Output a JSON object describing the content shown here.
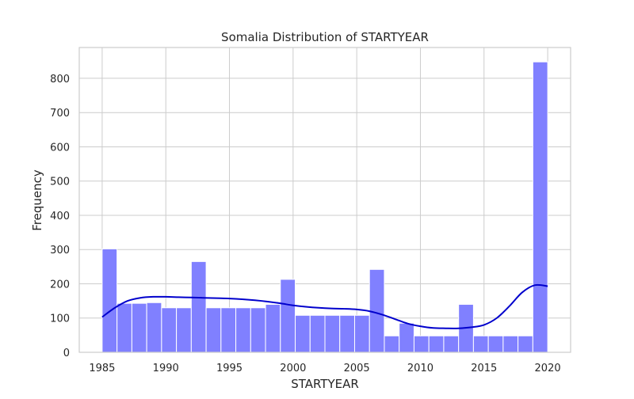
{
  "chart_data": {
    "type": "bar",
    "title": "Somalia Distribution of STARTYEAR",
    "xlabel": "STARTYEAR",
    "ylabel": "Frequency",
    "xlim": [
      1983.2,
      2021.8
    ],
    "ylim": [
      0,
      890
    ],
    "xticks": [
      1985,
      1990,
      1995,
      2000,
      2005,
      2010,
      2015,
      2020
    ],
    "yticks": [
      0,
      100,
      200,
      300,
      400,
      500,
      600,
      700,
      800
    ],
    "grid": true,
    "bin_start": 1985,
    "bin_width": 1.1667,
    "values": [
      302,
      143,
      143,
      145,
      130,
      130,
      265,
      130,
      130,
      130,
      130,
      140,
      213,
      108,
      108,
      108,
      108,
      108,
      242,
      48,
      85,
      48,
      48,
      48,
      140,
      48,
      48,
      48,
      48,
      848
    ],
    "bar_color": "#8080ff",
    "kde": {
      "color": "#0000cc",
      "x": [
        1985,
        1986,
        1987,
        1988,
        1989,
        1990,
        1991,
        1992,
        1993,
        1994,
        1995,
        1996,
        1997,
        1998,
        1999,
        2000,
        2001,
        2002,
        2003,
        2004,
        2005,
        2006,
        2007,
        2008,
        2009,
        2010,
        2011,
        2012,
        2013,
        2014,
        2015,
        2016,
        2017,
        2018,
        2019,
        2020
      ],
      "y": [
        103,
        130,
        150,
        159,
        162,
        162,
        161,
        160,
        159,
        158,
        157,
        155,
        152,
        148,
        143,
        137,
        133,
        130,
        128,
        127,
        125,
        120,
        110,
        97,
        84,
        76,
        71,
        70,
        70,
        73,
        80,
        100,
        135,
        175,
        196,
        193
      ]
    }
  }
}
